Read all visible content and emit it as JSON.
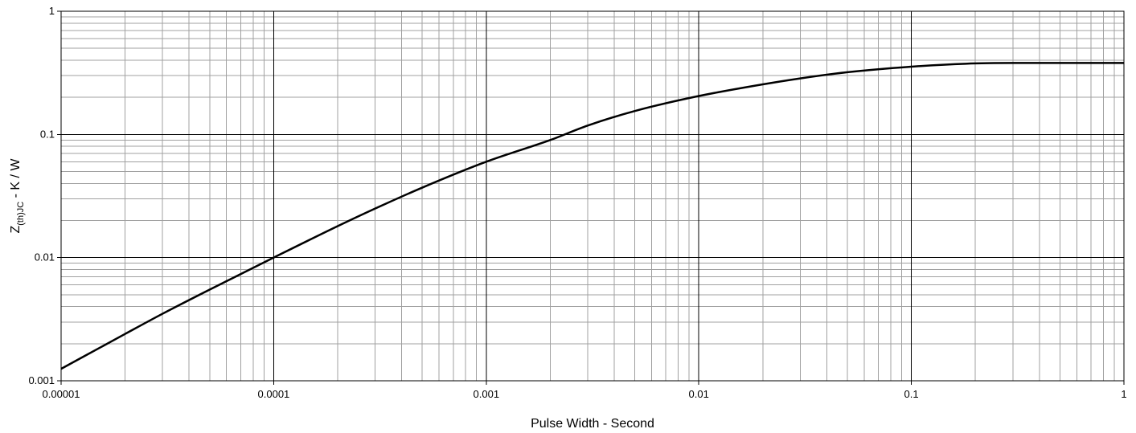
{
  "chart_data": {
    "type": "line",
    "title": "",
    "xlabel": "Pulse Width - Second",
    "ylabel": {
      "main": "Z",
      "subscript": "(th)JC",
      "suffix": " - K / W"
    },
    "x_scale": "log",
    "y_scale": "log",
    "xlim": [
      1e-05,
      1
    ],
    "ylim": [
      0.001,
      1
    ],
    "x_ticks": [
      "0.00001",
      "0.0001",
      "0.001",
      "0.01",
      "0.1",
      "1"
    ],
    "y_ticks": [
      "0.001",
      "0.01",
      "0.1",
      "1"
    ],
    "grid": true,
    "legend": "none",
    "line_color": "#000000",
    "series": [
      {
        "x": [
          1e-05,
          2e-05,
          3e-05,
          5e-05,
          0.0001,
          0.0002,
          0.0003,
          0.0005,
          0.001,
          0.002,
          0.003,
          0.005,
          0.01,
          0.02,
          0.03,
          0.05,
          0.1,
          0.18,
          0.3,
          0.5,
          1
        ],
        "y": [
          0.00125,
          0.0024,
          0.0035,
          0.0055,
          0.01,
          0.018,
          0.025,
          0.037,
          0.06,
          0.09,
          0.118,
          0.155,
          0.205,
          0.255,
          0.285,
          0.32,
          0.355,
          0.375,
          0.38,
          0.38,
          0.38
        ]
      }
    ]
  }
}
